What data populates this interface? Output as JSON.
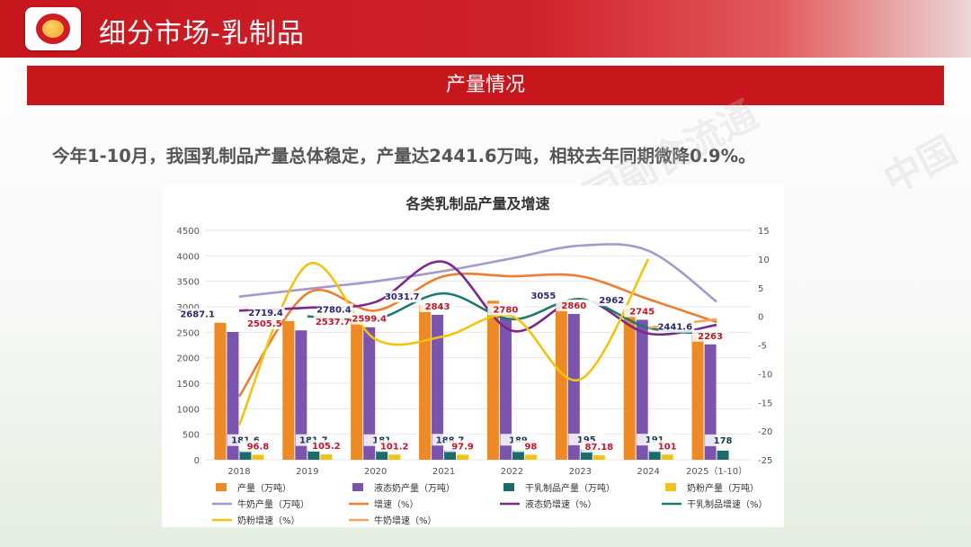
{
  "header": {
    "title": "细分市场-乳制品"
  },
  "section": {
    "title": "产量情况"
  },
  "summary": "今年1-10月，我国乳制品产量总体稳定，产量达2441.6万吨，相较去年同期微降0.9%。",
  "colors": {
    "brand_red": "#c8161d"
  },
  "chart_data": {
    "type": "bar",
    "title": "各类乳制品产量及增速",
    "categories": [
      "2018",
      "2019",
      "2020",
      "2021",
      "2022",
      "2023",
      "2024",
      "2025（1-10）"
    ],
    "ylim": [
      0,
      4500
    ],
    "y_ticks": [
      0,
      500,
      1000,
      1500,
      2000,
      2500,
      3000,
      3500,
      4000,
      4500
    ],
    "y2lim": [
      -25,
      15
    ],
    "y2_ticks": [
      -25,
      -20,
      -15,
      -10,
      -5,
      0,
      5,
      10,
      15
    ],
    "bar_series": [
      {
        "name": "产量（万吨）",
        "color": "#ee8a26",
        "values": [
          2687.1,
          2719.4,
          2780.4,
          3031.7,
          3117.7,
          3055,
          2962,
          2441.6
        ],
        "labels": [
          "2687.1",
          "2719.4",
          "2780.4",
          "3031.7",
          "",
          "3055",
          "2962",
          "2441.6"
        ]
      },
      {
        "name": "液态奶产量（万吨）",
        "color": "#7a54ad",
        "values": [
          2505.5,
          2537.7,
          2599.4,
          2843,
          2780,
          2860,
          2745,
          2263
        ],
        "labels": [
          "2505.5",
          "2537.7",
          "2599.4",
          "2843",
          "2780",
          "2860",
          "2745",
          "2263"
        ]
      },
      {
        "name": "干乳制品产量（万吨）",
        "color": "#1d6a6a",
        "values": [
          181.6,
          181.7,
          181,
          188.7,
          189,
          195,
          191,
          178
        ],
        "labels": [
          "181.6",
          "181.7",
          "181",
          "188.7",
          "189",
          "195",
          "191",
          "178"
        ]
      },
      {
        "name": "奶粉产量（万吨）",
        "color": "#f3c21a",
        "values": [
          96.8,
          105.2,
          101.2,
          97.9,
          98,
          87.18,
          101,
          null
        ],
        "labels": [
          "96.8",
          "105.2",
          "101.2",
          "97.9",
          "98",
          "87.18",
          "101",
          ""
        ]
      }
    ],
    "line_series": [
      {
        "name": "牛奶产量（万吨）",
        "color": "#a899cc",
        "axis": "left",
        "values": [
          3200,
          3350,
          3500,
          3700,
          3950,
          4200,
          4100,
          3100
        ]
      },
      {
        "name": "增速（%）",
        "color": "#ed7d31",
        "axis": "right",
        "values": [
          -14,
          4,
          1,
          7,
          7,
          7,
          3,
          -1
        ]
      },
      {
        "name": "液态奶增速（%）",
        "color": "#7b2a8a",
        "axis": "right",
        "values": [
          1,
          1.5,
          2.5,
          9.5,
          -2.5,
          3,
          -3,
          -1.5
        ]
      },
      {
        "name": "干乳制品增速（%）",
        "color": "#1f7a6e",
        "axis": "right",
        "values": [
          null,
          0,
          -0.5,
          4,
          -0.5,
          3,
          -2,
          -3
        ]
      },
      {
        "name": "奶粉增速（%）",
        "color": "#f1c40f",
        "axis": "right",
        "values": [
          -19,
          9,
          -4,
          -3.5,
          0,
          -11,
          10,
          null
        ]
      },
      {
        "name": "牛奶增速（%）",
        "color": "#f0a560",
        "axis": "right",
        "values": [
          null,
          null,
          null,
          null,
          null,
          null,
          -2,
          -0.5
        ]
      }
    ],
    "legend": [
      "产量（万吨）",
      "液态奶产量（万吨）",
      "干乳制品产量（万吨）",
      "奶粉产量（万吨）",
      "牛奶产量（万吨）",
      "增速（%）",
      "液态奶增速（%）",
      "干乳制品增速（%）",
      "奶粉增速（%）",
      "牛奶增速（%）"
    ]
  }
}
